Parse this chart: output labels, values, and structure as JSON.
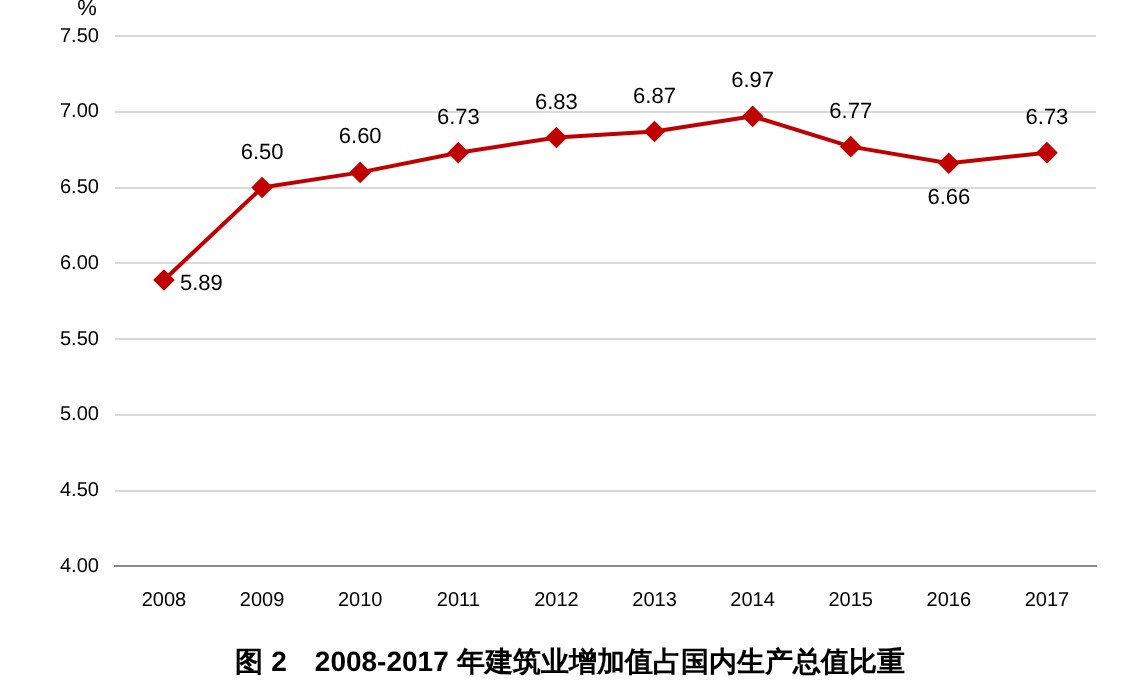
{
  "chart_data": {
    "type": "line",
    "title": "图 2　2008-2017 年建筑业增加值占国内生产总值比重",
    "ylabel": "%",
    "categories": [
      "2008",
      "2009",
      "2010",
      "2011",
      "2012",
      "2013",
      "2014",
      "2015",
      "2016",
      "2017"
    ],
    "series": [
      {
        "color": "#c00000",
        "values": [
          5.89,
          6.5,
          6.6,
          6.73,
          6.83,
          6.87,
          6.97,
          6.77,
          6.66,
          6.73
        ],
        "value_labels": [
          "5.89",
          "6.50",
          "6.60",
          "6.73",
          "6.83",
          "6.87",
          "6.97",
          "6.77",
          "6.66",
          "6.73"
        ]
      }
    ],
    "ylim": [
      4,
      7.5
    ],
    "yticks": [
      {
        "value": 4,
        "label": "4.00"
      },
      {
        "value": 4.5,
        "label": "4.50"
      },
      {
        "value": 5,
        "label": "5.00"
      },
      {
        "value": 5.5,
        "label": "5.50"
      },
      {
        "value": 6,
        "label": "6.00"
      },
      {
        "value": 6.5,
        "label": "6.50"
      },
      {
        "value": 7,
        "label": "7.00"
      },
      {
        "value": 7.5,
        "label": "7.50"
      }
    ],
    "grid": "y",
    "legend": false,
    "marker": "diamond",
    "line_style": "solid"
  }
}
